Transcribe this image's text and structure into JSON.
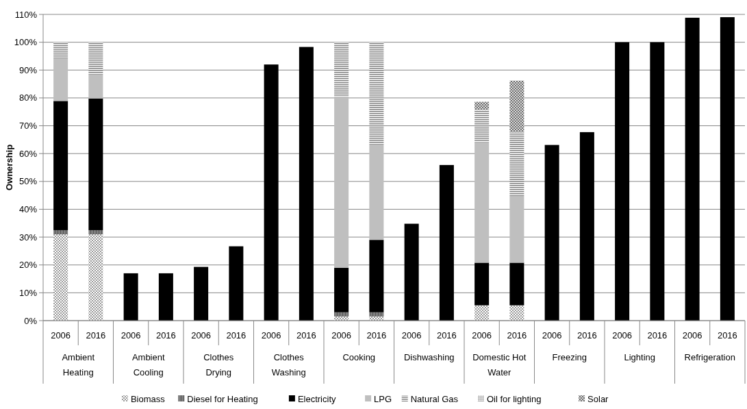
{
  "chart_data": {
    "type": "bar",
    "stacked": true,
    "ylabel": "Ownership",
    "categories": [
      "2006",
      "2016",
      "2006",
      "2016",
      "2006",
      "2016",
      "2006",
      "2016",
      "2006",
      "2016",
      "2006",
      "2016",
      "2006",
      "2016",
      "2006",
      "2016",
      "2006",
      "2016",
      "2006",
      "2016"
    ],
    "annotations": [
      "Ambient Heating",
      "Ambient Cooling",
      "Clothes Drying",
      "Clothes Washing",
      "Cooking",
      "Dishwashing",
      "Domestic Hot Water",
      "Freezing",
      "Lighting",
      "Refrigeration"
    ],
    "series": [
      {
        "name": "Biomass",
        "color": "#9a9a9a",
        "values": [
          31,
          31,
          0,
          0,
          0,
          0,
          0,
          0,
          1.5,
          1.5,
          0,
          0,
          5.5,
          5.5,
          0,
          0,
          0,
          0,
          0,
          0
        ]
      },
      {
        "name": "Diesel for Heating",
        "color": "#7f7f7f",
        "values": [
          1.5,
          1.5,
          0,
          0,
          0,
          0,
          0,
          0,
          1.5,
          1.5,
          0,
          0,
          0,
          0,
          0,
          0,
          0,
          0,
          0,
          0
        ]
      },
      {
        "name": "Electricity",
        "color": "#000000",
        "values": [
          46.4,
          47.3,
          17,
          17,
          19.3,
          26.7,
          92,
          98.3,
          16,
          26,
          34.8,
          55.9,
          15.3,
          15.3,
          63.1,
          67.7,
          100,
          100,
          108.8,
          109
        ]
      },
      {
        "name": "LPG",
        "color": "#bfbfbf",
        "values": [
          15.3,
          8.6,
          0,
          0,
          0,
          0,
          0,
          0,
          61.5,
          34.3,
          0,
          0,
          43.3,
          24,
          0,
          0,
          0,
          0,
          0,
          0
        ]
      },
      {
        "name": "Natural Gas",
        "color": "#808080",
        "values": [
          5.8,
          11.6,
          0,
          0,
          0,
          0,
          0,
          0,
          19.5,
          36.7,
          0,
          0,
          11.6,
          23,
          0,
          0,
          0,
          0,
          0,
          0
        ]
      },
      {
        "name": "Oil for lighting",
        "color": "#a8a8a8",
        "values": [
          0,
          0,
          0,
          0,
          0,
          0,
          0,
          0,
          0,
          0,
          0,
          0,
          0,
          0,
          0,
          0,
          0,
          0,
          0,
          0
        ]
      },
      {
        "name": "Solar",
        "color": "#6e6e6e",
        "values": [
          0,
          0,
          0,
          0,
          0,
          0,
          0,
          0,
          0,
          0,
          0,
          0,
          2.9,
          18.4,
          0,
          0,
          0,
          0,
          0,
          0
        ]
      }
    ],
    "ylim": [
      0,
      110
    ],
    "yticks": [
      {
        "value": 0,
        "label": "0%"
      },
      {
        "value": 10,
        "label": "10%"
      },
      {
        "value": 20,
        "label": "20%"
      },
      {
        "value": 30,
        "label": "30%"
      },
      {
        "value": 40,
        "label": "40%"
      },
      {
        "value": 50,
        "label": "50%"
      },
      {
        "value": 60,
        "label": "60%"
      },
      {
        "value": 70,
        "label": "70%"
      },
      {
        "value": 80,
        "label": "80%"
      },
      {
        "value": 90,
        "label": "90%"
      },
      {
        "value": 100,
        "label": "100%"
      },
      {
        "value": 110,
        "label": "110%"
      }
    ],
    "grid": "y",
    "legend": "bottom"
  }
}
